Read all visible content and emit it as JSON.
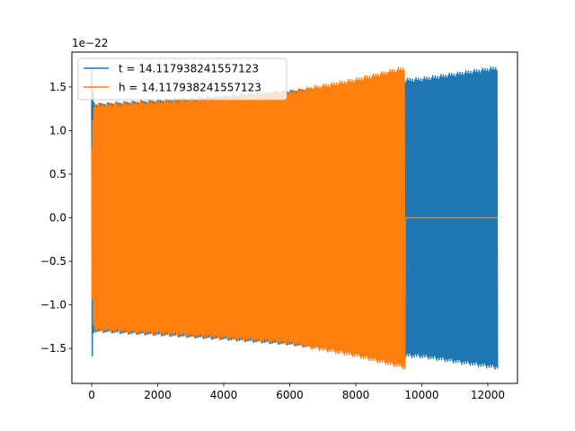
{
  "chart_data": {
    "type": "line",
    "title": "",
    "xlabel": "",
    "ylabel": "",
    "y_offset_text": "1e−22",
    "xlim": [
      -600,
      12900
    ],
    "ylim": [
      -1.9,
      1.9
    ],
    "x_ticks": [
      0,
      2000,
      4000,
      6000,
      8000,
      10000,
      12000
    ],
    "x_tick_labels": [
      "0",
      "2000",
      "4000",
      "6000",
      "8000",
      "10000",
      "12000"
    ],
    "y_ticks": [
      -1.5,
      -1.0,
      -0.5,
      0.0,
      0.5,
      1.0,
      1.5
    ],
    "y_tick_labels": [
      "−1.5",
      "−1.0",
      "−0.5",
      "0.0",
      "0.5",
      "1.0",
      "1.5"
    ],
    "grid": false,
    "legend_position": "top-left",
    "series": [
      {
        "name": "t = 14.117938241557123",
        "color": "#1f77b4",
        "x_range": [
          0,
          12300
        ],
        "envelope": {
          "x": [
            0,
            60,
            120,
            1000,
            2000,
            4000,
            6000,
            8000,
            9500,
            10000,
            12300
          ],
          "amp": [
            1.72,
            1.33,
            1.31,
            1.33,
            1.35,
            1.4,
            1.46,
            1.53,
            1.6,
            1.61,
            1.74
          ]
        }
      },
      {
        "name": "h = 14.117938241557123",
        "color": "#ff7f0e",
        "x_range": [
          0,
          12300
        ],
        "envelope": {
          "x": [
            0,
            60,
            120,
            1000,
            2000,
            4000,
            6000,
            8000,
            9500
          ],
          "amp": [
            0.85,
            1.3,
            1.31,
            1.33,
            1.35,
            1.4,
            1.46,
            1.6,
            1.74
          ]
        },
        "zero_after_x": 9500
      }
    ]
  }
}
